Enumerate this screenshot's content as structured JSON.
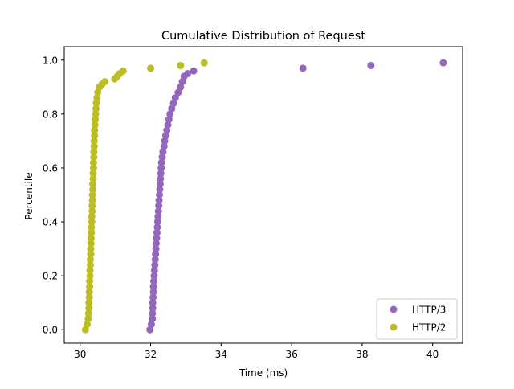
{
  "chart_data": {
    "type": "scatter",
    "title": "Cumulative Distribution of Request",
    "xlabel": "Time (ms)",
    "ylabel": "Percentile",
    "xlim": [
      29.55,
      40.85
    ],
    "ylim": [
      -0.05,
      1.05
    ],
    "xticks": [
      "30",
      "32",
      "34",
      "36",
      "38",
      "40"
    ],
    "yticks": [
      "0.0",
      "0.2",
      "0.4",
      "0.6",
      "0.8",
      "1.0"
    ],
    "grid": false,
    "legend_position": "bottom-right",
    "series": [
      {
        "name": "HTTP/3",
        "color": "#9467bd",
        "points": [
          [
            31.98,
            0.0
          ],
          [
            32.02,
            0.02
          ],
          [
            32.05,
            0.04
          ],
          [
            32.05,
            0.06
          ],
          [
            32.06,
            0.08
          ],
          [
            32.06,
            0.1
          ],
          [
            32.07,
            0.12
          ],
          [
            32.08,
            0.14
          ],
          [
            32.08,
            0.16
          ],
          [
            32.09,
            0.18
          ],
          [
            32.1,
            0.2
          ],
          [
            32.11,
            0.22
          ],
          [
            32.12,
            0.24
          ],
          [
            32.13,
            0.26
          ],
          [
            32.14,
            0.28
          ],
          [
            32.15,
            0.3
          ],
          [
            32.16,
            0.32
          ],
          [
            32.17,
            0.34
          ],
          [
            32.18,
            0.36
          ],
          [
            32.19,
            0.38
          ],
          [
            32.2,
            0.4
          ],
          [
            32.21,
            0.42
          ],
          [
            32.22,
            0.44
          ],
          [
            32.23,
            0.46
          ],
          [
            32.24,
            0.48
          ],
          [
            32.25,
            0.5
          ],
          [
            32.26,
            0.52
          ],
          [
            32.27,
            0.54
          ],
          [
            32.28,
            0.56
          ],
          [
            32.29,
            0.58
          ],
          [
            32.3,
            0.6
          ],
          [
            32.31,
            0.62
          ],
          [
            32.33,
            0.64
          ],
          [
            32.35,
            0.66
          ],
          [
            32.38,
            0.68
          ],
          [
            32.4,
            0.7
          ],
          [
            32.43,
            0.72
          ],
          [
            32.46,
            0.74
          ],
          [
            32.49,
            0.76
          ],
          [
            32.52,
            0.78
          ],
          [
            32.55,
            0.8
          ],
          [
            32.6,
            0.82
          ],
          [
            32.65,
            0.84
          ],
          [
            32.7,
            0.86
          ],
          [
            32.78,
            0.88
          ],
          [
            32.85,
            0.9
          ],
          [
            32.9,
            0.92
          ],
          [
            32.95,
            0.94
          ],
          [
            33.05,
            0.95
          ],
          [
            33.22,
            0.96
          ],
          [
            36.32,
            0.97
          ],
          [
            38.25,
            0.98
          ],
          [
            40.3,
            0.99
          ]
        ]
      },
      {
        "name": "HTTP/2",
        "color": "#bcbd22",
        "points": [
          [
            30.15,
            0.0
          ],
          [
            30.2,
            0.02
          ],
          [
            30.23,
            0.04
          ],
          [
            30.24,
            0.06
          ],
          [
            30.25,
            0.08
          ],
          [
            30.25,
            0.1
          ],
          [
            30.26,
            0.12
          ],
          [
            30.26,
            0.14
          ],
          [
            30.27,
            0.16
          ],
          [
            30.27,
            0.18
          ],
          [
            30.28,
            0.2
          ],
          [
            30.28,
            0.22
          ],
          [
            30.29,
            0.24
          ],
          [
            30.29,
            0.26
          ],
          [
            30.3,
            0.28
          ],
          [
            30.3,
            0.3
          ],
          [
            30.31,
            0.32
          ],
          [
            30.31,
            0.34
          ],
          [
            30.32,
            0.36
          ],
          [
            30.32,
            0.38
          ],
          [
            30.33,
            0.4
          ],
          [
            30.33,
            0.42
          ],
          [
            30.34,
            0.44
          ],
          [
            30.34,
            0.46
          ],
          [
            30.35,
            0.48
          ],
          [
            30.35,
            0.5
          ],
          [
            30.36,
            0.52
          ],
          [
            30.36,
            0.54
          ],
          [
            30.37,
            0.56
          ],
          [
            30.37,
            0.58
          ],
          [
            30.38,
            0.6
          ],
          [
            30.38,
            0.62
          ],
          [
            30.39,
            0.64
          ],
          [
            30.39,
            0.66
          ],
          [
            30.4,
            0.68
          ],
          [
            30.4,
            0.7
          ],
          [
            30.41,
            0.72
          ],
          [
            30.41,
            0.74
          ],
          [
            30.42,
            0.76
          ],
          [
            30.43,
            0.78
          ],
          [
            30.44,
            0.8
          ],
          [
            30.45,
            0.82
          ],
          [
            30.46,
            0.84
          ],
          [
            30.48,
            0.86
          ],
          [
            30.5,
            0.88
          ],
          [
            30.55,
            0.9
          ],
          [
            30.62,
            0.91
          ],
          [
            30.7,
            0.92
          ],
          [
            30.98,
            0.93
          ],
          [
            31.05,
            0.94
          ],
          [
            31.12,
            0.95
          ],
          [
            31.22,
            0.96
          ],
          [
            32.0,
            0.97
          ],
          [
            32.85,
            0.98
          ],
          [
            33.52,
            0.99
          ]
        ]
      }
    ]
  }
}
